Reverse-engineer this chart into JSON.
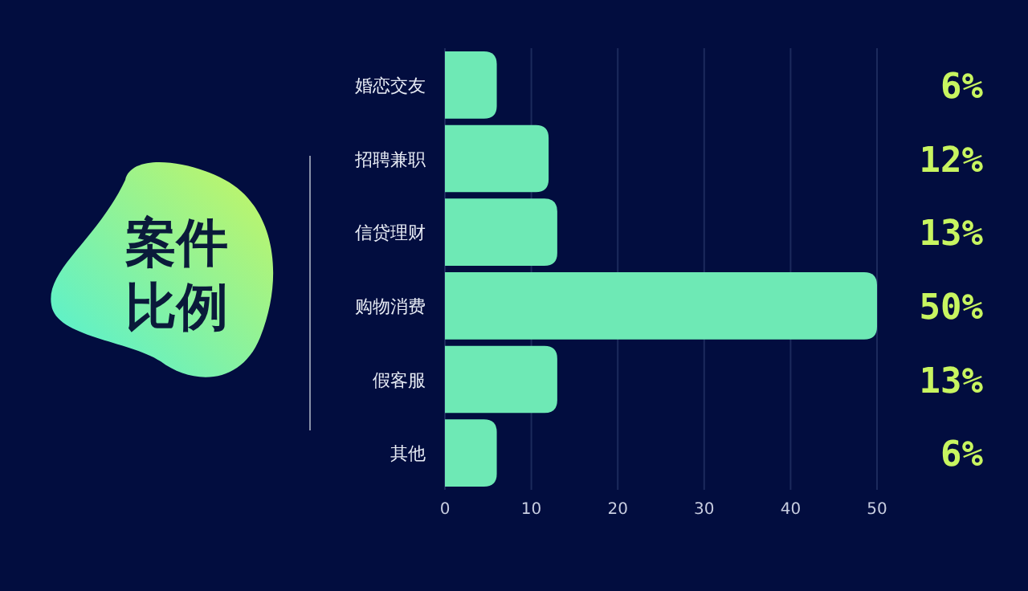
{
  "chart_data": {
    "type": "bar",
    "orientation": "horizontal",
    "title": "案件比例",
    "categories": [
      "婚恋交友",
      "招聘兼职",
      "信贷理财",
      "购物消费",
      "假客服",
      "其他"
    ],
    "values": [
      6,
      12,
      13,
      50,
      13,
      6
    ],
    "value_labels": [
      "6%",
      "12%",
      "13%",
      "50%",
      "13%",
      "6%"
    ],
    "color": "#6ee9b5",
    "xlim": [
      0,
      50
    ],
    "xticks": [
      0,
      10,
      20,
      30,
      40,
      50
    ],
    "grid": "x"
  }
}
